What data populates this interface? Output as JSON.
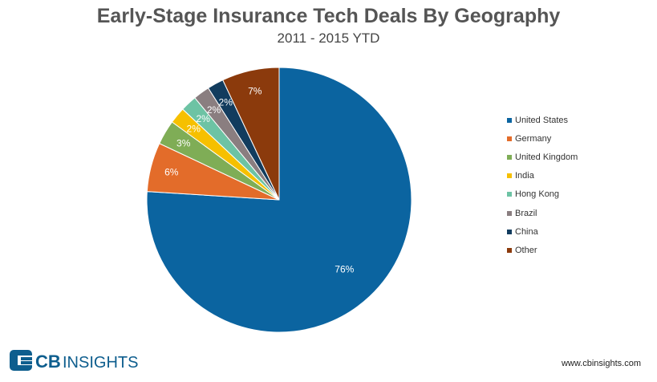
{
  "chart_data": {
    "type": "pie",
    "title": "Early-Stage Insurance Tech Deals By Geography",
    "subtitle": "2011 - 2015 YTD",
    "legend_position": "right",
    "slices": [
      {
        "label": "United States",
        "value": 76,
        "display": "76%",
        "color": "#0b64a0"
      },
      {
        "label": "Germany",
        "value": 6,
        "display": "6%",
        "color": "#e36c2a"
      },
      {
        "label": "United Kingdom",
        "value": 3,
        "display": "3%",
        "color": "#7fad56"
      },
      {
        "label": "India",
        "value": 2,
        "display": "2%",
        "color": "#f6c000"
      },
      {
        "label": "Hong Kong",
        "value": 2,
        "display": "2%",
        "color": "#6dc3a4"
      },
      {
        "label": "Brazil",
        "value": 2,
        "display": "2%",
        "color": "#8a7e80"
      },
      {
        "label": "China",
        "value": 2,
        "display": "2%",
        "color": "#123c5e"
      },
      {
        "label": "Other",
        "value": 7,
        "display": "7%",
        "color": "#8b3a0c"
      }
    ]
  },
  "branding": {
    "logo_text_bold": "CB",
    "logo_text": "INSIGHTS",
    "logo_color": "#0e5e8e",
    "url": "www.cbinsights.com"
  }
}
